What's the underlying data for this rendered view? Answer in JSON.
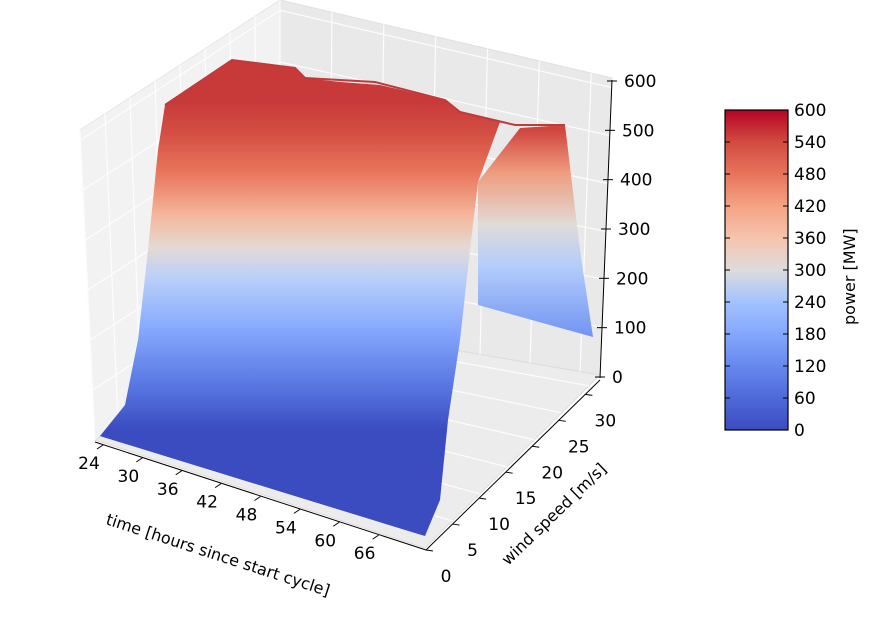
{
  "chart_data": {
    "type": "surface",
    "title": "",
    "xlabel": "time [hours since start cycle]",
    "ylabel": "wind speed [m/s]",
    "zlabel": "",
    "x_ticks": [
      "24",
      "30",
      "36",
      "42",
      "48",
      "54",
      "60",
      "66"
    ],
    "y_ticks": [
      "0",
      "5",
      "10",
      "15",
      "20",
      "25",
      "30"
    ],
    "z_ticks": [
      "0",
      "100",
      "200",
      "300",
      "400",
      "500",
      "600"
    ],
    "xlim": [
      24,
      72
    ],
    "ylim": [
      0,
      32
    ],
    "zlim": [
      0,
      620
    ],
    "colormap": "coolwarm",
    "colorbar": {
      "label": "power [MW]",
      "ticks": [
        "0",
        "60",
        "120",
        "180",
        "240",
        "300",
        "360",
        "420",
        "480",
        "540",
        "600"
      ],
      "range": [
        0,
        600
      ]
    },
    "surface": {
      "description_values": {
        "wind_speed": [
          0,
          1,
          2,
          3,
          3.5,
          4,
          5,
          6,
          7,
          8,
          9,
          10,
          11,
          12,
          13,
          14,
          15,
          16,
          17,
          18,
          19,
          20,
          21,
          22,
          23,
          24,
          25,
          26,
          27,
          28,
          29,
          30,
          31
        ],
        "power_at_hour_24": [
          0,
          0,
          0,
          0,
          0,
          10,
          70,
          160,
          290,
          420,
          520,
          565,
          585,
          592,
          595,
          596,
          597,
          597,
          597,
          597,
          597,
          597,
          597,
          597,
          597,
          597,
          597,
          597,
          597,
          597,
          597,
          597,
          597
        ]
      },
      "time_hours": [
        24,
        30,
        36,
        42,
        48,
        54,
        60,
        66,
        72
      ],
      "rated_power_by_time": [
        590,
        595,
        585,
        600,
        590,
        575,
        560,
        555,
        540
      ],
      "cut_out_wind_speed": 25,
      "power_above_cut_out": [
        110,
        100,
        90,
        80,
        70,
        60,
        55,
        50,
        45
      ]
    },
    "grid": true
  }
}
